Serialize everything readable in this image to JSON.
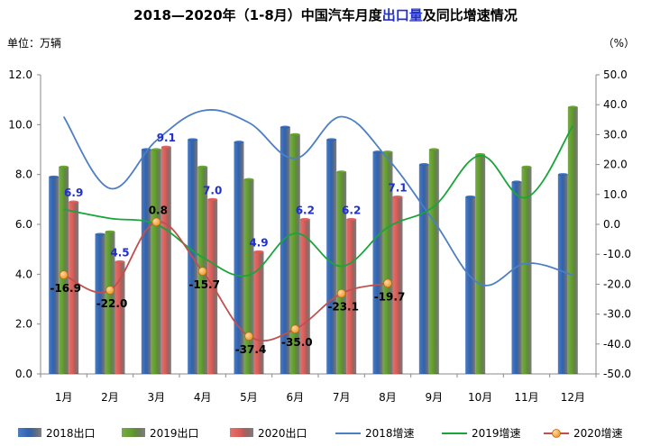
{
  "chart_data": {
    "type": "bar+line",
    "title_prefix": "2018—2020年（1-8月）中国汽车月度",
    "title_highlight": "出口量",
    "title_suffix": "及同比增速情况",
    "y_left_unit": "单位：万辆",
    "y_right_unit": "（%）",
    "categories": [
      "1月",
      "2月",
      "3月",
      "4月",
      "5月",
      "6月",
      "7月",
      "8月",
      "9月",
      "10月",
      "11月",
      "12月"
    ],
    "y_left_ticks": [
      "0.0",
      "2.0",
      "4.0",
      "6.0",
      "8.0",
      "10.0",
      "12.0"
    ],
    "y_right_ticks": [
      "-50.0",
      "-40.0",
      "-30.0",
      "-20.0",
      "-10.0",
      "0.0",
      "10.0",
      "20.0",
      "30.0",
      "40.0",
      "50.0"
    ],
    "y_left_range": [
      0,
      12
    ],
    "y_right_range": [
      -50,
      50
    ],
    "bar_series": [
      {
        "name": "2018出口",
        "color": "#2e64b4",
        "values": [
          7.9,
          5.6,
          9.0,
          9.4,
          9.3,
          9.9,
          9.4,
          8.9,
          8.4,
          7.1,
          7.7,
          8.0
        ]
      },
      {
        "name": "2019出口",
        "color": "#5f9b2a",
        "values": [
          8.3,
          5.7,
          9.0,
          8.3,
          7.8,
          9.6,
          8.1,
          8.9,
          9.0,
          8.8,
          8.3,
          10.7
        ]
      },
      {
        "name": "2020出口",
        "color": "#d95a55",
        "values": [
          6.9,
          4.5,
          9.1,
          7.0,
          4.9,
          6.2,
          6.2,
          7.1
        ]
      }
    ],
    "bar_labels_2020": [
      "6.9",
      "4.5",
      "9.1",
      "7.0",
      "4.9",
      "6.2",
      "6.2",
      "7.1"
    ],
    "line_series": [
      {
        "name": "2018增速",
        "color": "#4d7fc4",
        "values": [
          36.0,
          12.0,
          28.0,
          38.0,
          34.0,
          22.0,
          36.0,
          22.0,
          1.0,
          -20.0,
          -13.0,
          -17.0
        ]
      },
      {
        "name": "2019增速",
        "color": "#1aa53a",
        "values": [
          5.0,
          2.0,
          0.0,
          -11.0,
          -17.0,
          -3.0,
          -14.0,
          -1.0,
          6.0,
          23.0,
          9.0,
          33.0
        ]
      },
      {
        "name": "2020增速",
        "color": "#c0504d",
        "marker_color": "#f09a2e",
        "values": [
          -16.9,
          -22.0,
          0.8,
          -15.7,
          -37.4,
          -35.0,
          -23.1,
          -19.7
        ]
      }
    ],
    "line_labels_2020": [
      "-16.9",
      "-22.0",
      "0.8",
      "-15.7",
      "-37.4",
      "-35.0",
      "-23.1",
      "-19.7"
    ],
    "legend_placement": "bottom",
    "grid": false
  }
}
